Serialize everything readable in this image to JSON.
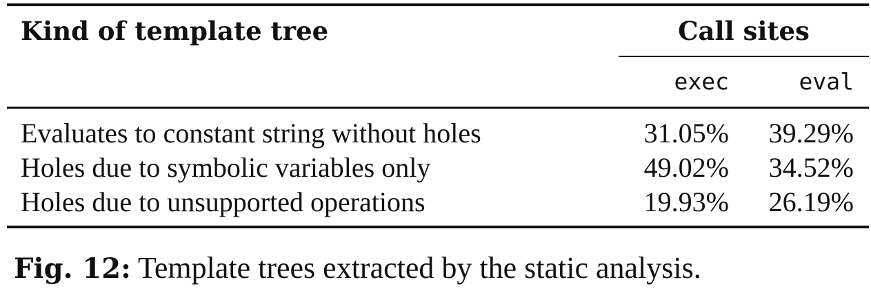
{
  "table": {
    "header": {
      "kind_label": "Kind of template tree",
      "group_label": "Call sites",
      "columns": [
        "exec",
        "eval"
      ]
    },
    "rows": [
      {
        "label": "Evaluates to constant string without holes",
        "exec": "31.05%",
        "eval": "39.29%"
      },
      {
        "label": "Holes due to symbolic variables only",
        "exec": "49.02%",
        "eval": "34.52%"
      },
      {
        "label": "Holes due to unsupported operations",
        "exec": "19.93%",
        "eval": "26.19%"
      }
    ]
  },
  "caption": {
    "label": "Fig. 12:",
    "text": " Template trees extracted by the static analysis."
  }
}
